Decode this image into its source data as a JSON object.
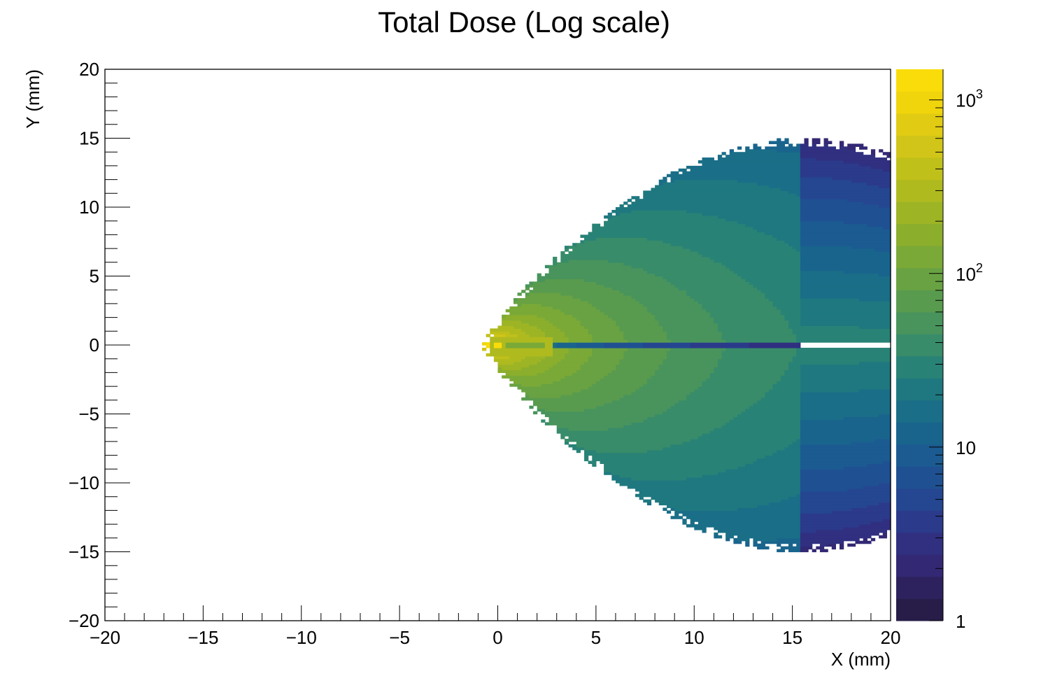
{
  "chart_data": {
    "type": "heatmap",
    "title": "Total Dose (Log scale)",
    "xlabel": "X (mm)",
    "ylabel": "Y (mm)",
    "xlim": [
      -20,
      20
    ],
    "ylim": [
      -20,
      20
    ],
    "x_ticks": [
      -20,
      -15,
      -10,
      -5,
      0,
      5,
      10,
      15,
      20
    ],
    "y_ticks": [
      -20,
      -15,
      -10,
      -5,
      0,
      5,
      10,
      15,
      20
    ],
    "x_tick_labels": [
      "−20",
      "−15",
      "−10",
      "−5",
      "0",
      "5",
      "10",
      "15",
      "20"
    ],
    "y_tick_labels": [
      "−20",
      "−15",
      "−10",
      "−5",
      "0",
      "5",
      "10",
      "15",
      "20"
    ],
    "colorbar": {
      "scale": "log",
      "range": [
        1,
        1500
      ],
      "ticks": [
        1,
        10,
        100,
        1000
      ],
      "tick_labels": [
        {
          "base": "1",
          "exp": ""
        },
        {
          "base": "10",
          "exp": ""
        },
        {
          "base": "10",
          "exp": "2"
        },
        {
          "base": "10",
          "exp": "3"
        }
      ],
      "palette": "kBird",
      "colors": [
        "#271d48",
        "#2d225e",
        "#322873",
        "#302f80",
        "#2b3a8b",
        "#254691",
        "#1f5192",
        "#1b5b91",
        "#19648d",
        "#1a6e87",
        "#1f7880",
        "#298276",
        "#388c6a",
        "#48945c",
        "#599b4e",
        "#69a242",
        "#7aa937",
        "#8bae2d",
        "#9db425",
        "#afba1f",
        "#c0c01b",
        "#d0c518",
        "#e1cb13",
        "#f0d40c",
        "#f9dc09"
      ]
    },
    "levels": {
      "source_peak": 1400,
      "capsule_ring": 300,
      "core": 120,
      "inner_lobe": 60,
      "outer_lobe": 30,
      "fringe": 2,
      "outer_boundary_half_width_mm": 15
    }
  }
}
